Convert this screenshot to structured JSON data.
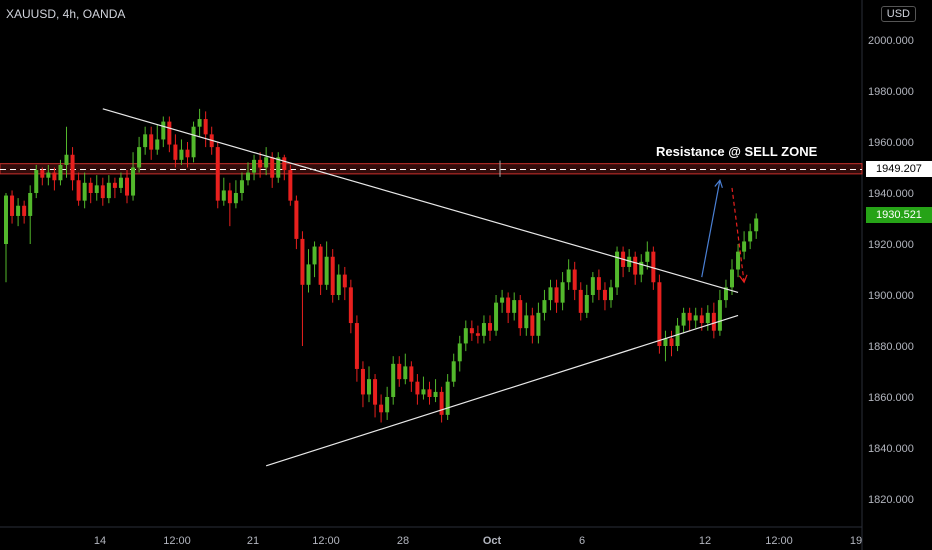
{
  "symbol": "XAUUSD, 4h, OANDA",
  "currency": "USD",
  "colors": {
    "up": "#53b82c",
    "down": "#e8201e",
    "resistance": "#c9302c",
    "trend": "#e8e8e8",
    "projection_up": "#4a7fd4",
    "projection_down": "#e8201e"
  },
  "annotations": {
    "resistance_label": "Resistance @ SELL ZONE",
    "resistance_price": "1949.207",
    "last_price": "1930.521"
  },
  "chart_data": {
    "type": "candlestick",
    "title": "",
    "xlabel": "",
    "ylabel": "",
    "ylim": [
      1808,
      2012
    ],
    "y_ticks": [
      "2000.000",
      "1980.000",
      "1960.000",
      "1940.000",
      "1920.000",
      "1900.000",
      "1880.000",
      "1860.000",
      "1840.000",
      "1820.000"
    ],
    "x_ticks": [
      "14",
      "12:00",
      "21",
      "12:00",
      "28",
      "Oct",
      "6",
      "12",
      "12:00",
      "19"
    ],
    "grid": false,
    "candles": [
      [
        1920,
        1939,
        1940,
        1905
      ],
      [
        1939,
        1931,
        1941,
        1928
      ],
      [
        1931,
        1935,
        1938,
        1927
      ],
      [
        1935,
        1931,
        1937,
        1928
      ],
      [
        1931,
        1940,
        1943,
        1920
      ],
      [
        1940,
        1949,
        1951,
        1938
      ],
      [
        1949,
        1946,
        1950,
        1943
      ],
      [
        1946,
        1948,
        1951,
        1943
      ],
      [
        1948,
        1945,
        1950,
        1941
      ],
      [
        1945,
        1951,
        1953,
        1943
      ],
      [
        1951,
        1955,
        1966,
        1946
      ],
      [
        1955,
        1945,
        1958,
        1941
      ],
      [
        1945,
        1937,
        1948,
        1935
      ],
      [
        1937,
        1944,
        1948,
        1934
      ],
      [
        1944,
        1940,
        1946,
        1936
      ],
      [
        1940,
        1943,
        1947,
        1937
      ],
      [
        1943,
        1938,
        1946,
        1935
      ],
      [
        1938,
        1944,
        1947,
        1936
      ],
      [
        1944,
        1942,
        1946,
        1938
      ],
      [
        1942,
        1946,
        1948,
        1940
      ],
      [
        1946,
        1939,
        1949,
        1936
      ],
      [
        1939,
        1950,
        1956,
        1937
      ],
      [
        1950,
        1958,
        1962,
        1948
      ],
      [
        1958,
        1963,
        1966,
        1955
      ],
      [
        1963,
        1957,
        1966,
        1953
      ],
      [
        1957,
        1961,
        1967,
        1955
      ],
      [
        1961,
        1968,
        1970,
        1958
      ],
      [
        1968,
        1959,
        1970,
        1956
      ],
      [
        1959,
        1953,
        1963,
        1950
      ],
      [
        1953,
        1957,
        1961,
        1951
      ],
      [
        1957,
        1954,
        1960,
        1950
      ],
      [
        1954,
        1966,
        1968,
        1952
      ],
      [
        1966,
        1969,
        1973,
        1962
      ],
      [
        1969,
        1963,
        1972,
        1958
      ],
      [
        1963,
        1958,
        1966,
        1955
      ],
      [
        1958,
        1937,
        1960,
        1934
      ],
      [
        1937,
        1941,
        1946,
        1935
      ],
      [
        1941,
        1936,
        1944,
        1927
      ],
      [
        1936,
        1940,
        1945,
        1934
      ],
      [
        1940,
        1945,
        1948,
        1937
      ],
      [
        1945,
        1948,
        1952,
        1943
      ],
      [
        1948,
        1953,
        1955,
        1945
      ],
      [
        1953,
        1950,
        1956,
        1946
      ],
      [
        1950,
        1954,
        1958,
        1947
      ],
      [
        1954,
        1946,
        1956,
        1942
      ],
      [
        1946,
        1954,
        1956,
        1944
      ],
      [
        1954,
        1949,
        1955,
        1945
      ],
      [
        1949,
        1937,
        1951,
        1935
      ],
      [
        1937,
        1922,
        1939,
        1918
      ],
      [
        1922,
        1904,
        1925,
        1880
      ],
      [
        1904,
        1912,
        1918,
        1901
      ],
      [
        1912,
        1919,
        1921,
        1907
      ],
      [
        1919,
        1904,
        1920,
        1900
      ],
      [
        1904,
        1915,
        1921,
        1902
      ],
      [
        1915,
        1900,
        1918,
        1897
      ],
      [
        1900,
        1908,
        1912,
        1898
      ],
      [
        1908,
        1903,
        1911,
        1898
      ],
      [
        1903,
        1889,
        1906,
        1885
      ],
      [
        1889,
        1871,
        1892,
        1866
      ],
      [
        1871,
        1861,
        1874,
        1856
      ],
      [
        1861,
        1867,
        1872,
        1858
      ],
      [
        1867,
        1857,
        1869,
        1852
      ],
      [
        1857,
        1854,
        1861,
        1850
      ],
      [
        1854,
        1860,
        1864,
        1851
      ],
      [
        1860,
        1873,
        1876,
        1857
      ],
      [
        1873,
        1867,
        1876,
        1864
      ],
      [
        1867,
        1872,
        1877,
        1865
      ],
      [
        1872,
        1866,
        1874,
        1862
      ],
      [
        1866,
        1861,
        1869,
        1857
      ],
      [
        1861,
        1863,
        1868,
        1859
      ],
      [
        1863,
        1860,
        1866,
        1857
      ],
      [
        1860,
        1862,
        1867,
        1858
      ],
      [
        1862,
        1853,
        1864,
        1850
      ],
      [
        1853,
        1866,
        1869,
        1851
      ],
      [
        1866,
        1874,
        1877,
        1864
      ],
      [
        1874,
        1881,
        1884,
        1870
      ],
      [
        1881,
        1887,
        1890,
        1878
      ],
      [
        1887,
        1885,
        1890,
        1882
      ],
      [
        1885,
        1884,
        1888,
        1881
      ],
      [
        1884,
        1889,
        1892,
        1881
      ],
      [
        1889,
        1886,
        1892,
        1882
      ],
      [
        1886,
        1897,
        1900,
        1884
      ],
      [
        1897,
        1899,
        1902,
        1893
      ],
      [
        1899,
        1893,
        1901,
        1889
      ],
      [
        1893,
        1898,
        1901,
        1890
      ],
      [
        1898,
        1887,
        1900,
        1884
      ],
      [
        1887,
        1892,
        1897,
        1884
      ],
      [
        1892,
        1884,
        1895,
        1881
      ],
      [
        1884,
        1893,
        1897,
        1881
      ],
      [
        1893,
        1898,
        1902,
        1890
      ],
      [
        1898,
        1903,
        1906,
        1894
      ],
      [
        1903,
        1897,
        1906,
        1893
      ],
      [
        1897,
        1905,
        1909,
        1894
      ],
      [
        1905,
        1910,
        1914,
        1902
      ],
      [
        1910,
        1902,
        1913,
        1898
      ],
      [
        1902,
        1893,
        1905,
        1890
      ],
      [
        1893,
        1900,
        1904,
        1891
      ],
      [
        1900,
        1907,
        1909,
        1897
      ],
      [
        1907,
        1902,
        1910,
        1898
      ],
      [
        1902,
        1898,
        1905,
        1894
      ],
      [
        1898,
        1903,
        1906,
        1895
      ],
      [
        1903,
        1917,
        1919,
        1900
      ],
      [
        1917,
        1911,
        1919,
        1907
      ],
      [
        1911,
        1915,
        1918,
        1909
      ],
      [
        1915,
        1908,
        1917,
        1904
      ],
      [
        1908,
        1913,
        1916,
        1905
      ],
      [
        1913,
        1917,
        1921,
        1910
      ],
      [
        1917,
        1905,
        1919,
        1902
      ],
      [
        1905,
        1880,
        1908,
        1877
      ],
      [
        1880,
        1883,
        1886,
        1874
      ],
      [
        1883,
        1880,
        1886,
        1876
      ],
      [
        1880,
        1888,
        1891,
        1878
      ],
      [
        1888,
        1893,
        1895,
        1885
      ],
      [
        1893,
        1890,
        1895,
        1886
      ],
      [
        1890,
        1892,
        1895,
        1887
      ],
      [
        1892,
        1889,
        1895,
        1886
      ],
      [
        1889,
        1893,
        1896,
        1886
      ],
      [
        1893,
        1886,
        1897,
        1883
      ],
      [
        1886,
        1898,
        1902,
        1884
      ],
      [
        1898,
        1903,
        1906,
        1895
      ],
      [
        1903,
        1910,
        1914,
        1900
      ],
      [
        1910,
        1917,
        1920,
        1907
      ],
      [
        1917,
        1921,
        1925,
        1914
      ],
      [
        1921,
        1925,
        1928,
        1918
      ],
      [
        1925,
        1930,
        1932,
        1922
      ]
    ],
    "resistance_zone": [
      1947.5,
      1951.5
    ],
    "resistance_level": 1949.2,
    "trendlines": [
      {
        "name": "descending",
        "points": [
          [
            16,
            1973
          ],
          [
            121,
            1901
          ]
        ]
      },
      {
        "name": "ascending",
        "points": [
          [
            43,
            1833
          ],
          [
            121,
            1892
          ]
        ]
      }
    ],
    "projections": [
      {
        "direction": "up",
        "points": [
          [
            115,
            1907
          ],
          [
            118,
            1945
          ]
        ]
      },
      {
        "direction": "down",
        "points": [
          [
            120,
            1942
          ],
          [
            122,
            1905
          ]
        ]
      }
    ]
  }
}
